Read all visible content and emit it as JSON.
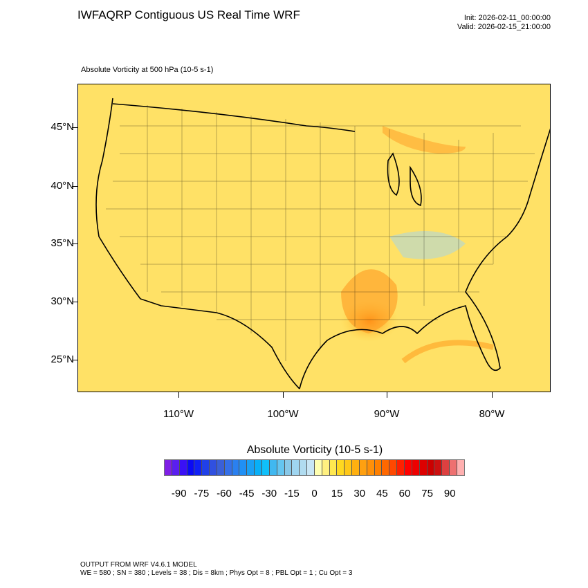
{
  "header": {
    "title": "IWFAQRP Contiguous US Real Time WRF",
    "init": "Init: 2026-02-11_00:00:00",
    "valid": "Valid: 2026-02-15_21:00:00",
    "subtitle": "Absolute Vorticity at 500 hPa   (10-5 s-1)"
  },
  "map": {
    "lat_labels": [
      "45°N",
      "40°N",
      "35°N",
      "30°N",
      "25°N"
    ],
    "lon_labels": [
      "110°W",
      "100°W",
      "90°W",
      "80°W"
    ]
  },
  "colorbar": {
    "title": "Absolute Vorticity  (10-5 s-1)",
    "labels": [
      "-90",
      "-75",
      "-60",
      "-45",
      "-30",
      "-15",
      "0",
      "15",
      "30",
      "45",
      "60",
      "75",
      "90"
    ],
    "colors": [
      "#7f1fe6",
      "#5a1ef0",
      "#3a10f5",
      "#0a0af5",
      "#1020f5",
      "#2040e8",
      "#3050e0",
      "#3a60d8",
      "#3570e8",
      "#2a80f0",
      "#2090f5",
      "#1aa0f5",
      "#08b0f8",
      "#10c0fa",
      "#40b8f0",
      "#65c5f0",
      "#88c8e8",
      "#9fd5f0",
      "#b0dcf0",
      "#c8e6f5",
      "#ffffb0",
      "#fff080",
      "#ffe850",
      "#ffd820",
      "#ffc818",
      "#ffb010",
      "#ffa010",
      "#ff9008",
      "#ff8000",
      "#ff6800",
      "#ff4800",
      "#ff2000",
      "#ff0000",
      "#ee0000",
      "#dd0000",
      "#cc0000",
      "#cc1010",
      "#dd4040",
      "#ee7070",
      "#ffb0b0"
    ]
  },
  "footer": {
    "line1": "OUTPUT FROM WRF V4.6.1 MODEL",
    "line2": "WE = 580 ; SN = 380 ; Levels = 38 ; Dis = 8km ; Phys Opt = 8 ; PBL Opt = 1 ; Cu Opt = 3"
  }
}
